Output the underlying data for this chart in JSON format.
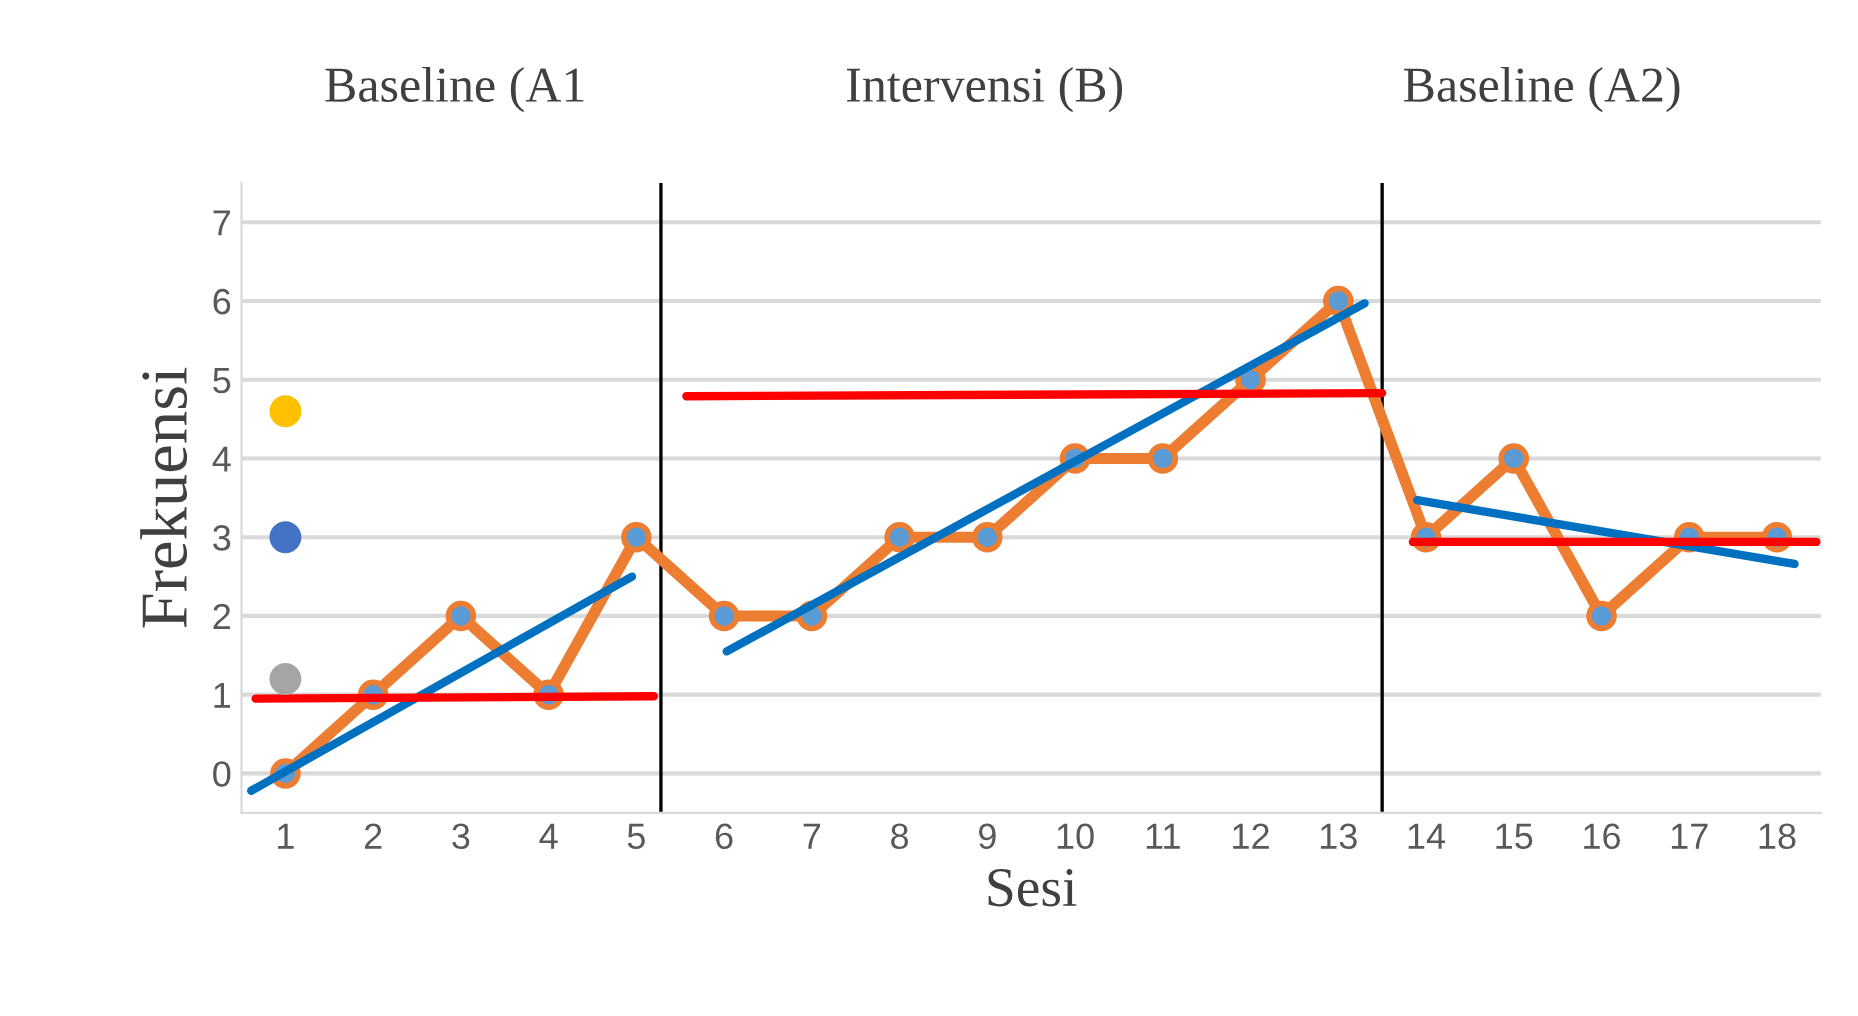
{
  "chart_data": {
    "type": "line",
    "xlabel": "Sesi",
    "ylabel": "Frekuensi",
    "annotations": [
      "Baseline (A1",
      "Intervensi (B)",
      "Baseline (A2)"
    ],
    "xlim": [
      0.5,
      18.5
    ],
    "xticks": [
      1,
      2,
      3,
      4,
      5,
      6,
      7,
      8,
      9,
      10,
      11,
      12,
      13,
      14,
      15,
      16,
      17,
      18
    ],
    "ylim": [
      -0.5,
      7.5
    ],
    "yticks": [
      0,
      1,
      2,
      3,
      4,
      5,
      6,
      7
    ],
    "grid": "y",
    "series": [
      {
        "color": "#ed7d31",
        "marker": "circle",
        "x": [
          1,
          2,
          3,
          4,
          5,
          6,
          7,
          8,
          9,
          10,
          11,
          12,
          13,
          14,
          15,
          16,
          17,
          18
        ],
        "values": [
          0,
          1,
          2,
          1,
          3,
          2,
          2,
          3,
          3,
          4,
          4,
          5,
          6,
          3,
          4,
          2,
          3,
          3
        ]
      },
      {
        "type": "line",
        "color": "#0070c0",
        "marker": "none",
        "x": [
          0.61,
          4.95
        ],
        "values": [
          -0.22,
          2.5
        ]
      },
      {
        "type": "line",
        "color": "#ff0000",
        "marker": "none",
        "x": [
          0.66,
          5.2
        ],
        "values": [
          0.95,
          0.98
        ]
      },
      {
        "type": "line",
        "color": "#0070c0",
        "marker": "none",
        "x": [
          6.03,
          13.3
        ],
        "values": [
          1.55,
          5.97
        ]
      },
      {
        "type": "line",
        "color": "#ff0000",
        "marker": "none",
        "x": [
          5.57,
          13.5
        ],
        "values": [
          4.79,
          4.83
        ]
      },
      {
        "type": "line",
        "color": "#0070c0",
        "marker": "none",
        "x": [
          13.9,
          18.2
        ],
        "values": [
          3.47,
          2.66
        ]
      },
      {
        "type": "line",
        "color": "#ff0000",
        "marker": "none",
        "x": [
          13.85,
          18.45
        ],
        "values": [
          2.94,
          2.94
        ]
      },
      {
        "type": "scatter",
        "x": [
          1,
          1,
          1
        ],
        "values": [
          4.6,
          3.0,
          1.2
        ],
        "colors": [
          "#ffc000",
          "#4472c4",
          "#a5a5a5"
        ]
      }
    ],
    "ref_lines": [
      {
        "axis": "x",
        "value": 5.28,
        "color": "#000000"
      },
      {
        "axis": "x",
        "value": 13.5,
        "color": "#000000"
      }
    ]
  }
}
